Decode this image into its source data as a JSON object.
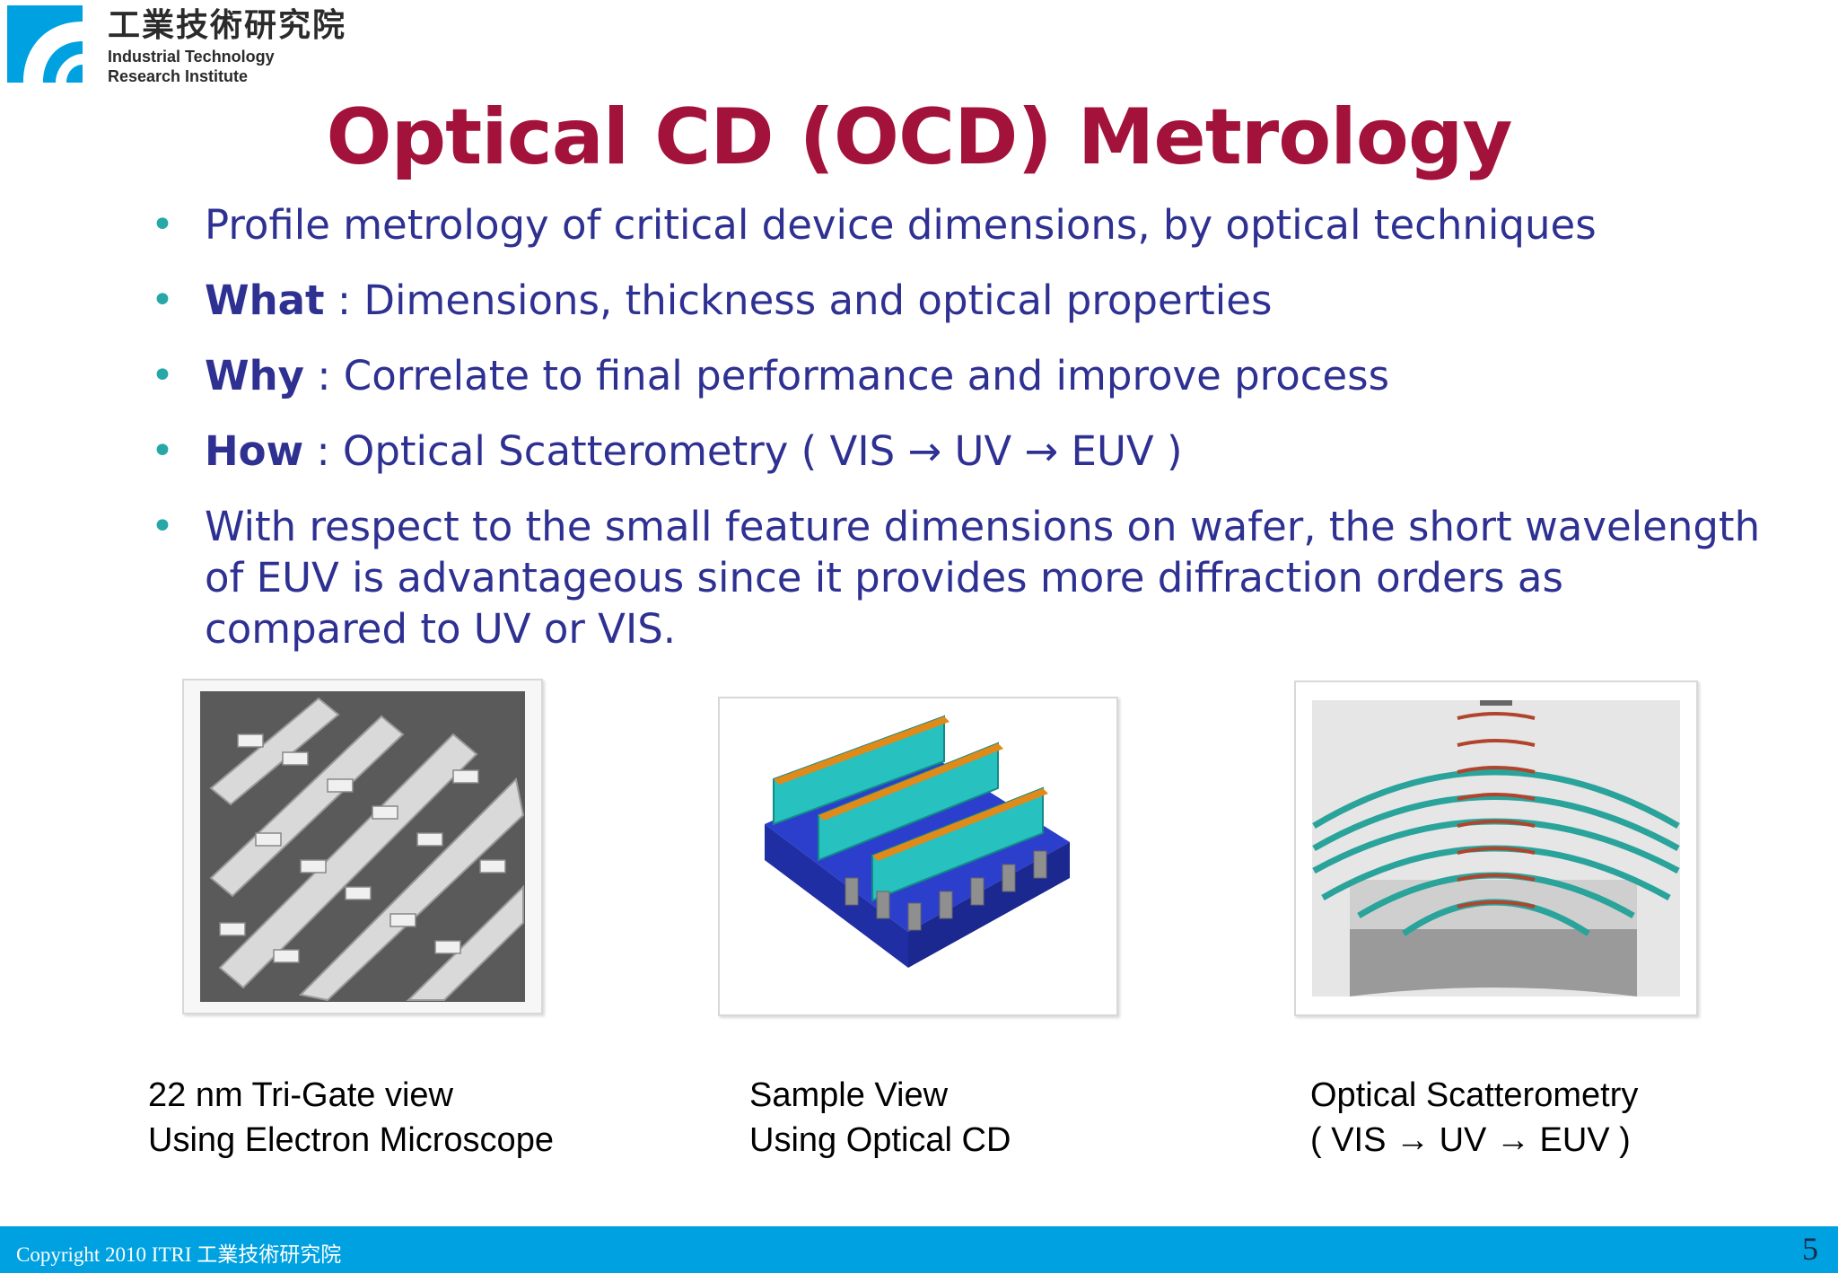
{
  "header": {
    "logo_cn": "工業技術研究院",
    "logo_en_line1": "Industrial Technology",
    "logo_en_line2": "Research Institute",
    "logo_color": "#00a1e0"
  },
  "slide": {
    "title": "Optical CD (OCD) Metrology",
    "title_color": "#a3123a",
    "text_color": "#2e3192",
    "bullet_color": "#26a7a8",
    "bullets": [
      {
        "label": "",
        "text": "Profile metrology of critical device dimensions, by optical techniques"
      },
      {
        "label": "What",
        "text": " : Dimensions, thickness and optical properties"
      },
      {
        "label": "Why",
        "text": " : Correlate to final performance and improve process"
      },
      {
        "label": "How",
        "text": " : Optical Scatterometry ( VIS → UV → EUV )"
      },
      {
        "label": "",
        "text": "With respect to the small feature dimensions on wafer, the short wavelength of EUV is advantageous since it provides more diffraction orders as compared to UV or VIS."
      }
    ]
  },
  "figures": [
    {
      "caption_line1": "22 nm Tri-Gate view",
      "caption_line2": "Using Electron Microscope"
    },
    {
      "caption_line1": "Sample View",
      "caption_line2": "Using Optical CD"
    },
    {
      "caption_line1": "Optical Scatterometry",
      "caption_line2": "( VIS → UV → EUV )"
    }
  ],
  "footer": {
    "copyright": "Copyright 2010 ITRI 工業技術研究院",
    "page_number": "5",
    "bar_color": "#00a1e0"
  }
}
